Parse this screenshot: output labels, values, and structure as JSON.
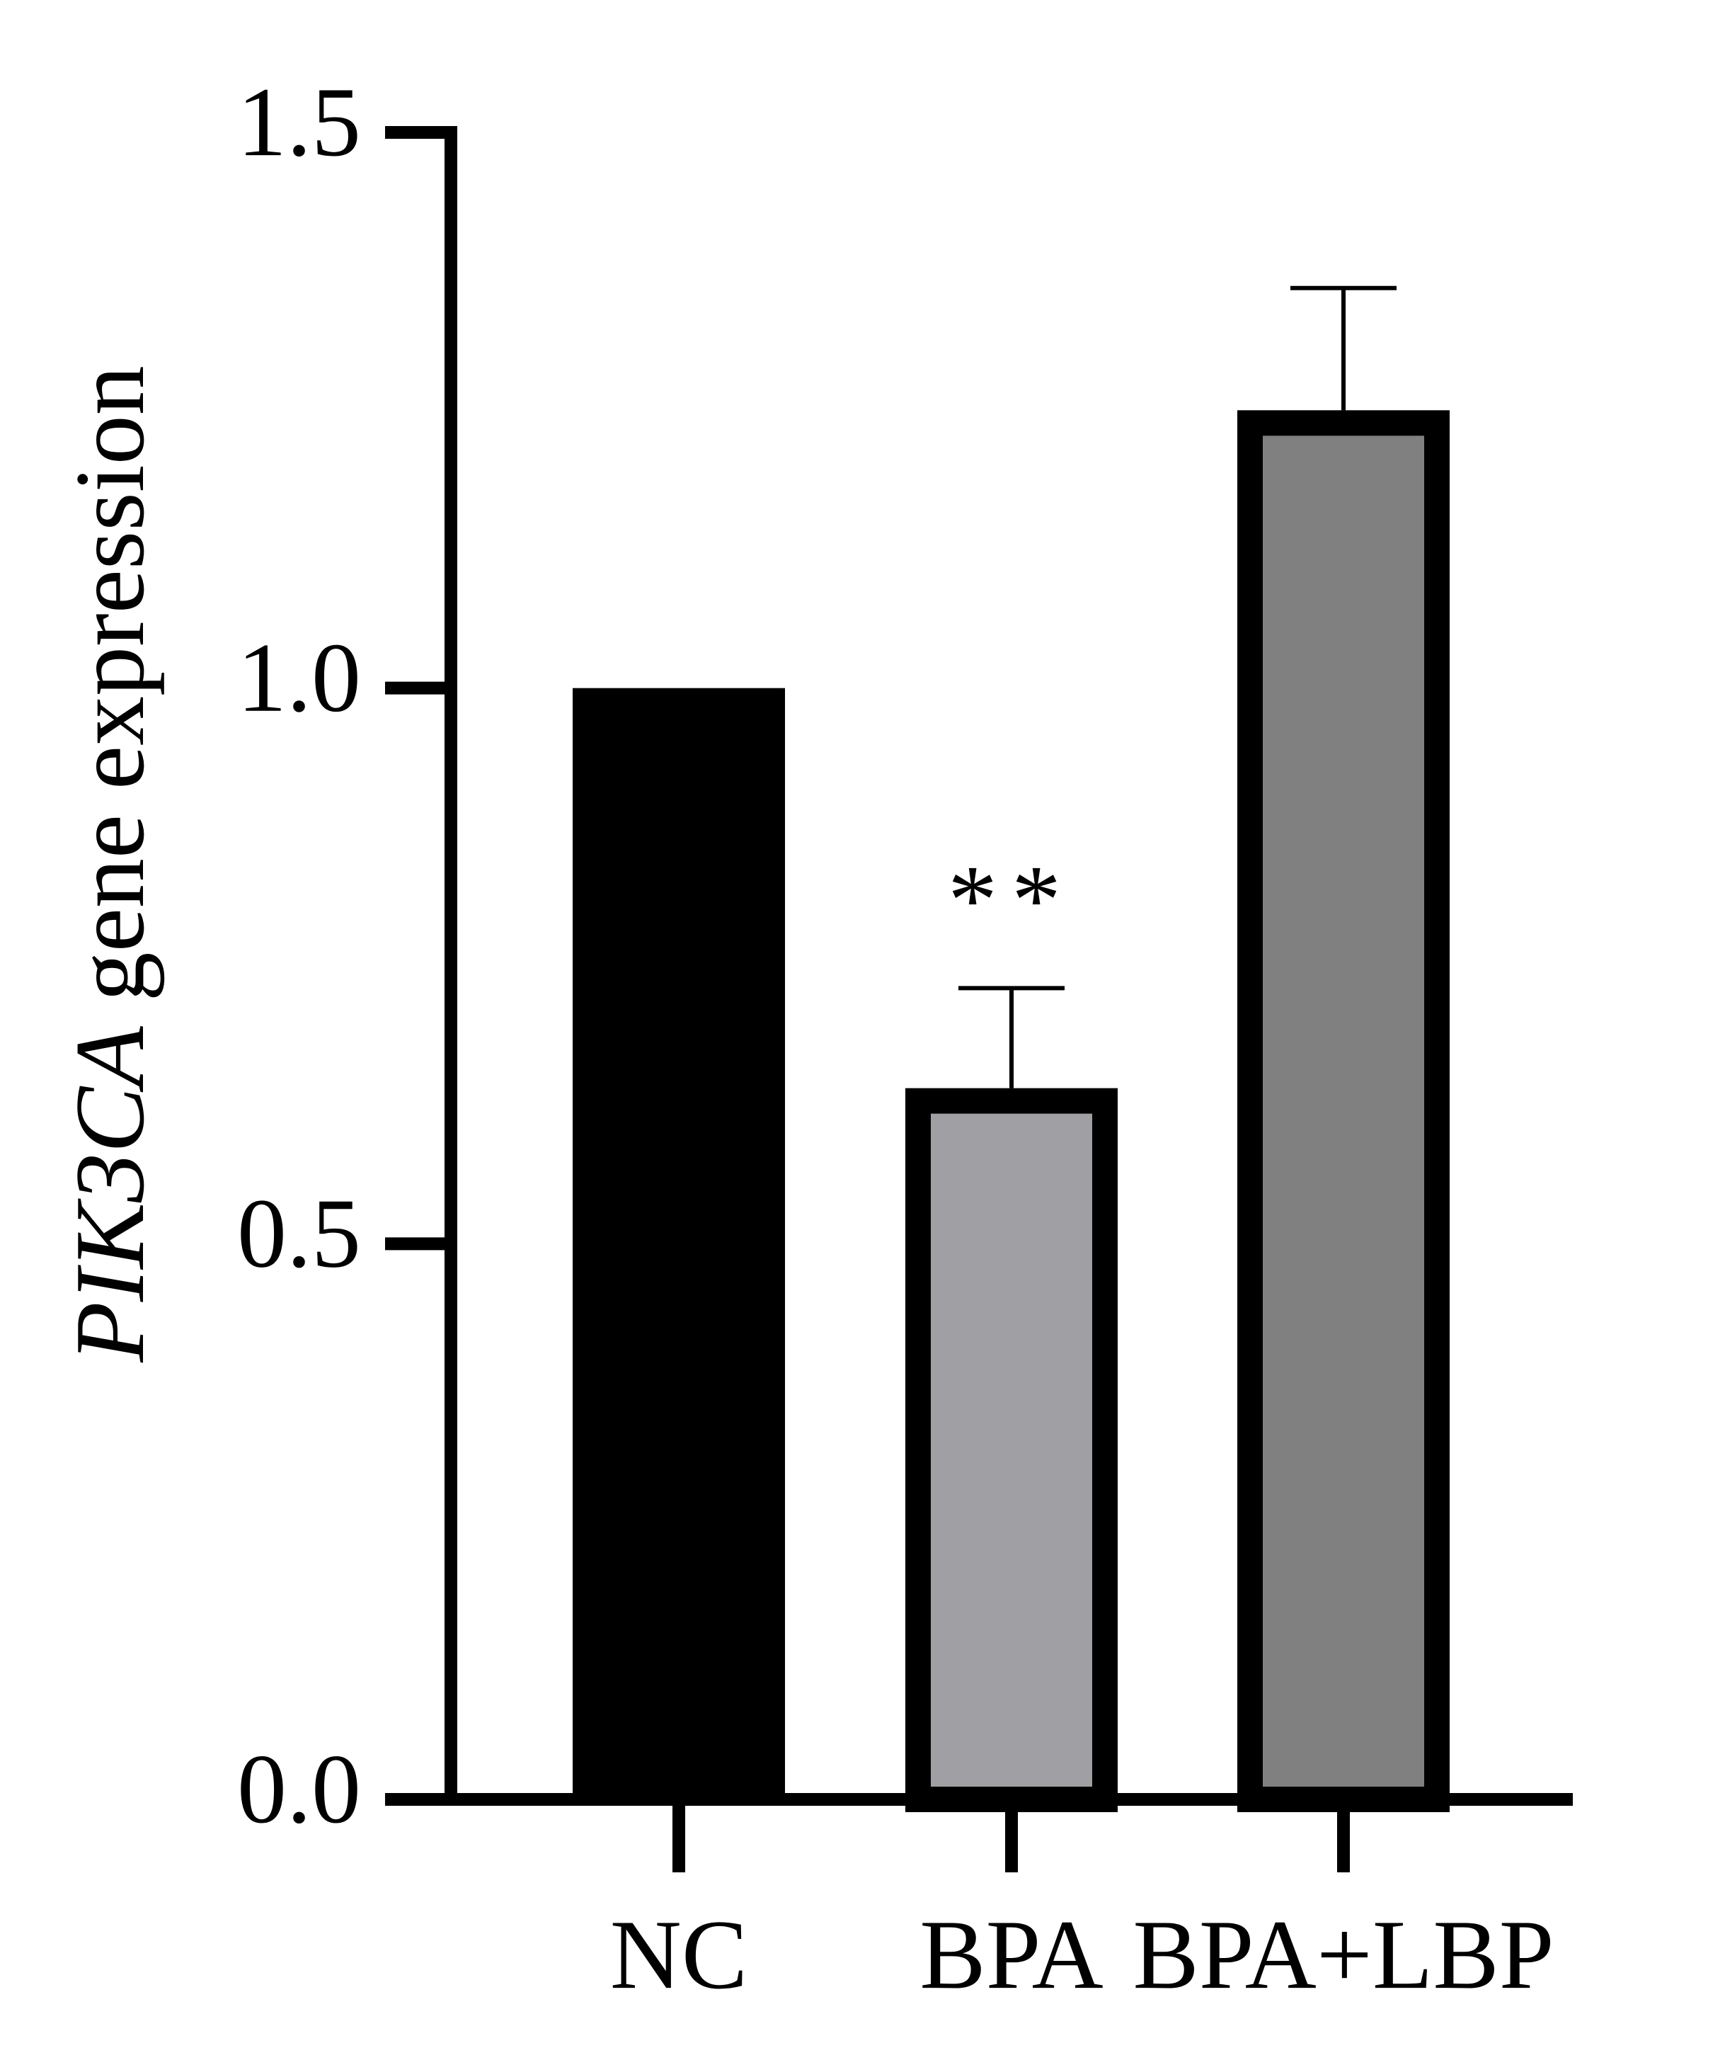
{
  "chart_data": {
    "type": "bar",
    "ylabel_italic": "PIK3CA",
    "ylabel": "gene expression",
    "categories": [
      "NC",
      "BPA",
      "BPA+LBP"
    ],
    "values": [
      1.0,
      0.64,
      1.25
    ],
    "errors": [
      null,
      0.09,
      0.11
    ],
    "colors": [
      "#000000",
      "#a0a0a4",
      "#808080"
    ],
    "significance": [
      null,
      "**",
      null
    ],
    "ylim": [
      0,
      1.5
    ],
    "yticks": [
      {
        "value": 0,
        "label": "0.0"
      },
      {
        "value": 0.5,
        "label": "0.5"
      },
      {
        "value": 1,
        "label": "1.0"
      },
      {
        "value": 1.5,
        "label": "1.5"
      }
    ]
  }
}
